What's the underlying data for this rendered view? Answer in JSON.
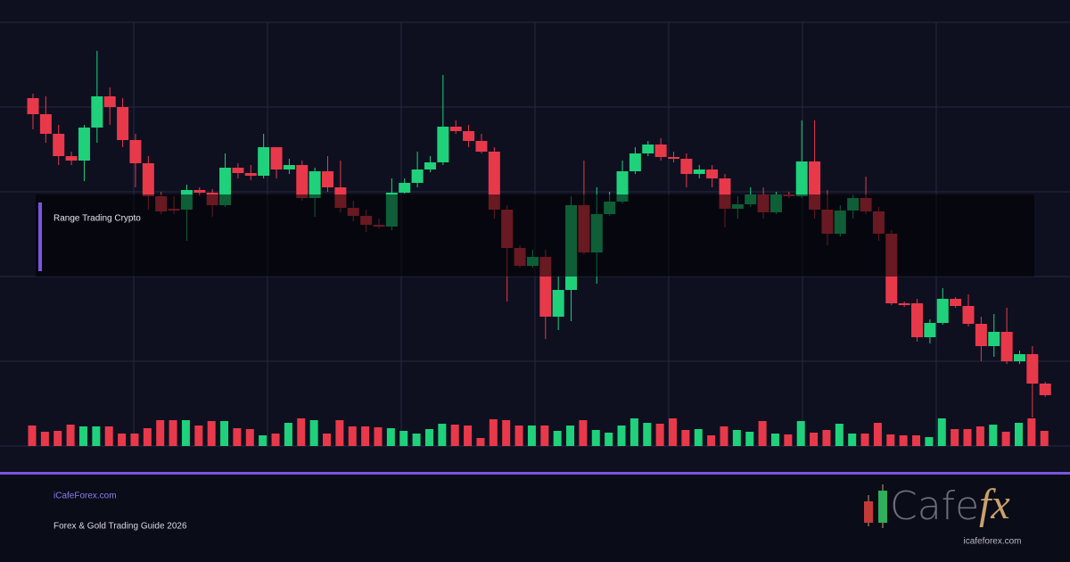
{
  "chart_data": {
    "type": "candlestick",
    "annotation": "Range Trading Crypto",
    "up_color": "#1fd17a",
    "down_color": "#e8394a",
    "ylim": [
      0,
      475
    ],
    "y2lim": [
      0,
      100
    ],
    "open": [
      390,
      372,
      350,
      325,
      320,
      357,
      392,
      380,
      343,
      317,
      280,
      266,
      265,
      287,
      284,
      270,
      312,
      306,
      303,
      335,
      310,
      315,
      278,
      308,
      290,
      267,
      258,
      248,
      246,
      284,
      295,
      310,
      318,
      358,
      353,
      342,
      330,
      265,
      222,
      202,
      212,
      145,
      175,
      270,
      217,
      260,
      274,
      308,
      328,
      338,
      324,
      322,
      305,
      310,
      300,
      266,
      271,
      282,
      262,
      282,
      280,
      319,
      265,
      238,
      264,
      278,
      263,
      238,
      160,
      160,
      122,
      138,
      165,
      157,
      137,
      112,
      128,
      95,
      103,
      70
    ],
    "high": [
      395,
      392,
      360,
      330,
      360,
      443,
      402,
      390,
      350,
      325,
      285,
      280,
      293,
      290,
      288,
      328,
      317,
      315,
      350,
      335,
      322,
      320,
      312,
      325,
      320,
      275,
      265,
      255,
      300,
      300,
      330,
      325,
      416,
      365,
      360,
      350,
      335,
      270,
      225,
      220,
      220,
      190,
      280,
      320,
      290,
      285,
      320,
      335,
      342,
      345,
      330,
      328,
      315,
      315,
      305,
      280,
      290,
      290,
      285,
      285,
      365,
      365,
      287,
      270,
      282,
      302,
      268,
      242,
      162,
      165,
      142,
      177,
      167,
      170,
      145,
      148,
      155,
      107,
      112,
      72
    ],
    "low": [
      355,
      340,
      315,
      315,
      297,
      340,
      360,
      335,
      290,
      265,
      260,
      260,
      230,
      280,
      257,
      268,
      300,
      298,
      300,
      300,
      305,
      275,
      257,
      285,
      262,
      252,
      240,
      244,
      242,
      283,
      290,
      307,
      315,
      350,
      335,
      328,
      255,
      162,
      200,
      200,
      120,
      130,
      140,
      215,
      182,
      258,
      272,
      305,
      325,
      320,
      318,
      290,
      300,
      290,
      245,
      255,
      268,
      255,
      260,
      278,
      278,
      255,
      225,
      235,
      255,
      260,
      230,
      158,
      156,
      117,
      115,
      136,
      155,
      134,
      95,
      100,
      92,
      92,
      32,
      55
    ],
    "close": [
      372,
      350,
      325,
      320,
      357,
      392,
      380,
      343,
      317,
      280,
      263,
      264,
      287,
      284,
      270,
      312,
      306,
      303,
      335,
      310,
      315,
      278,
      308,
      290,
      267,
      258,
      248,
      246,
      284,
      295,
      310,
      318,
      358,
      353,
      342,
      330,
      265,
      222,
      202,
      212,
      145,
      175,
      270,
      217,
      260,
      274,
      308,
      328,
      338,
      324,
      322,
      305,
      310,
      300,
      266,
      271,
      282,
      262,
      282,
      280,
      319,
      265,
      238,
      264,
      278,
      263,
      238,
      160,
      158,
      122,
      138,
      165,
      157,
      137,
      112,
      128,
      95,
      103,
      70,
      57
    ],
    "volume": [
      23,
      16,
      17,
      24,
      22,
      22,
      22,
      14,
      14,
      20,
      29,
      29,
      29,
      23,
      28,
      28,
      20,
      19,
      12,
      14,
      26,
      31,
      29,
      14,
      29,
      22,
      22,
      21,
      20,
      17,
      14,
      19,
      25,
      24,
      23,
      9,
      30,
      29,
      23,
      23,
      23,
      17,
      23,
      29,
      18,
      15,
      23,
      31,
      26,
      25,
      31,
      18,
      19,
      12,
      22,
      18,
      16,
      28,
      14,
      13,
      28,
      15,
      18,
      25,
      14,
      14,
      26,
      13,
      12,
      12,
      10,
      31,
      19,
      19,
      22,
      24,
      16,
      26,
      31,
      17
    ]
  },
  "footer": {
    "site": "iCafeForex.com",
    "subtitle": "Forex & Gold Trading Guide 2026"
  },
  "logo": {
    "word": "Cafe",
    "mark": "fx",
    "url": "icafeforex.com"
  }
}
